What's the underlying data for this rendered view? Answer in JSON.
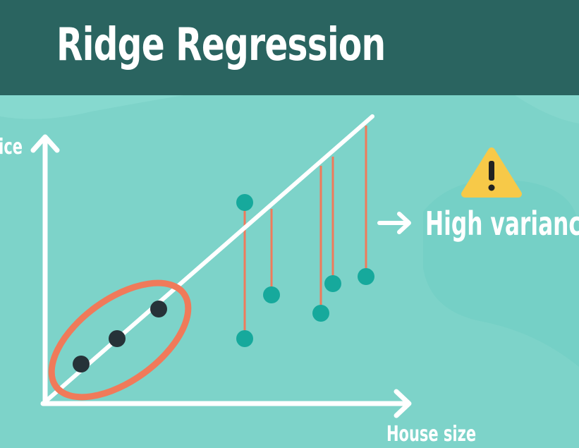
{
  "title": "Ridge Regression",
  "y_axis_label": "Price",
  "x_axis_label": "House size",
  "annotation": "High variance",
  "warning_icon": "warning-icon",
  "colors": {
    "header": "#2a6460",
    "background": "#7dd3c9",
    "training_point": "#263238",
    "test_point": "#16a99c",
    "residual": "#f07a5a",
    "ellipse": "#f07a5a",
    "line": "#ffffff"
  }
}
